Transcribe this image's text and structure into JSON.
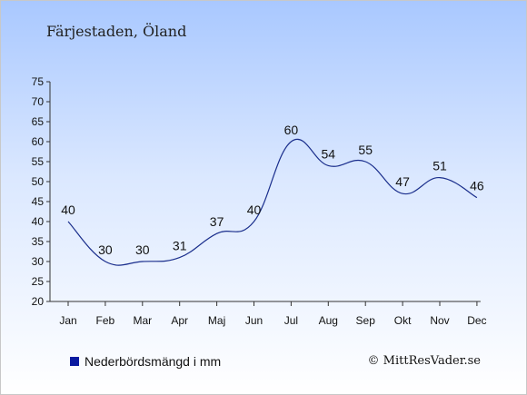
{
  "chart_data": {
    "type": "line",
    "title": "Färjestaden, Öland",
    "categories": [
      "Jan",
      "Feb",
      "Mar",
      "Apr",
      "Maj",
      "Jun",
      "Jul",
      "Aug",
      "Sep",
      "Okt",
      "Nov",
      "Dec"
    ],
    "series": [
      {
        "name": "Nederbördsmängd i mm",
        "values": [
          40,
          30,
          30,
          31,
          37,
          40,
          60,
          54,
          55,
          47,
          51,
          46
        ],
        "color": "#1a2e8c"
      }
    ],
    "yticks": [
      20,
      25,
      30,
      35,
      40,
      45,
      50,
      55,
      60,
      65,
      70,
      75
    ],
    "ylim": [
      20,
      75
    ],
    "grid": false,
    "legend": "bottom-left"
  },
  "legend_color": "#0a1aa0",
  "copyright": "© MittResVader.se"
}
